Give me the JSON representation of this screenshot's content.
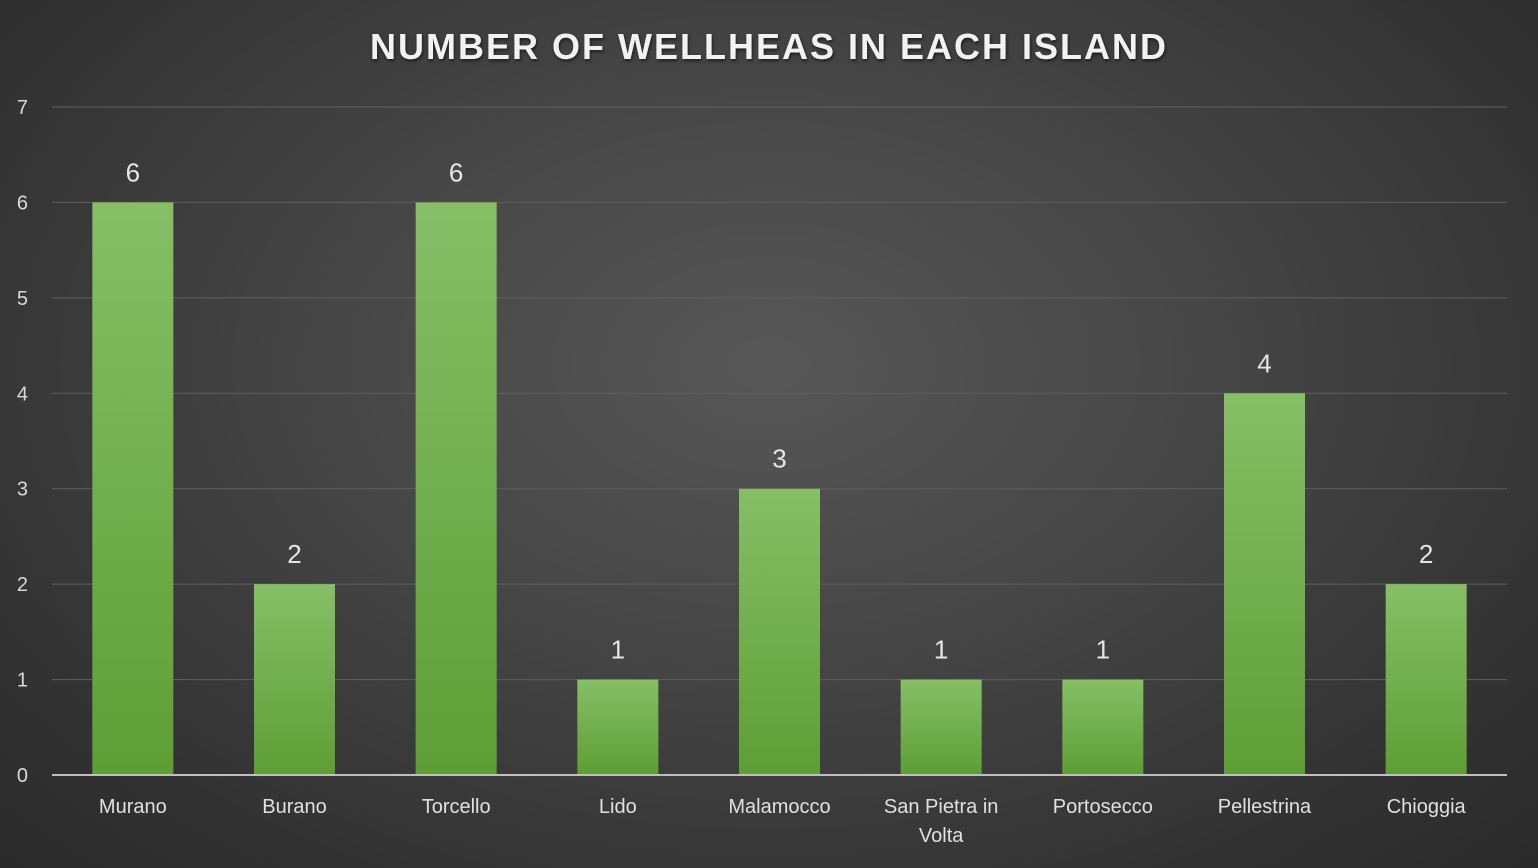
{
  "chart_data": {
    "type": "bar",
    "title": "NUMBER OF WELLHEAS IN EACH ISLAND",
    "xlabel": "",
    "ylabel": "",
    "categories": [
      "Murano",
      "Burano",
      "Torcello",
      "Lido",
      "Malamocco",
      "San Pietra in Volta",
      "Portosecco",
      "Pellestrina",
      "Chioggia"
    ],
    "category_lines": [
      [
        "Murano"
      ],
      [
        "Burano"
      ],
      [
        "Torcello"
      ],
      [
        "Lido"
      ],
      [
        "Malamocco"
      ],
      [
        "San Pietra in",
        "Volta"
      ],
      [
        "Portosecco"
      ],
      [
        "Pellestrina"
      ],
      [
        "Chioggia"
      ]
    ],
    "values": [
      6,
      2,
      6,
      1,
      3,
      1,
      1,
      4,
      2
    ],
    "ylim": [
      0,
      7
    ],
    "yticks": [
      0,
      1,
      2,
      3,
      4,
      5,
      6,
      7
    ],
    "grid": true,
    "data_labels": true,
    "legend": "none",
    "colors": {
      "bar_top": "#86bf66",
      "bar_bottom": "#5e9e35",
      "grid": "#5f5f5f",
      "axis": "#bfbfbf"
    }
  }
}
